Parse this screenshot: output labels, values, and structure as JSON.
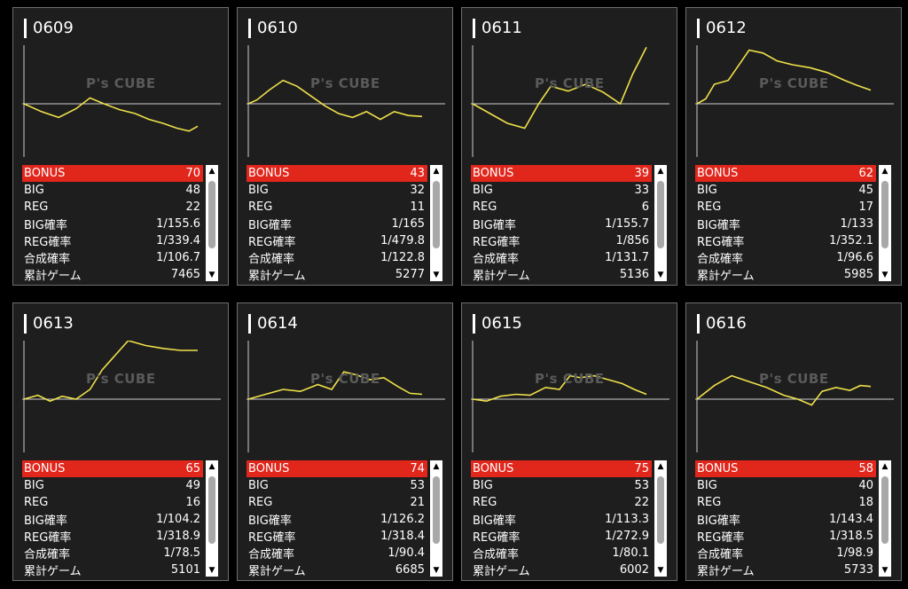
{
  "stat_labels": {
    "bonus": "BONUS",
    "big": "BIG",
    "reg": "REG",
    "big_rate": "BIG確率",
    "reg_rate": "REG確率",
    "total_rate": "合成確率",
    "games": "累計ゲーム"
  },
  "watermark": "P's CUBE",
  "colors": {
    "accent": "#e1261c",
    "line": "#f0e14a",
    "card_bg": "#1e1e1e"
  },
  "cards": [
    {
      "title": "0609",
      "bonus": "70",
      "big": "48",
      "reg": "22",
      "big_rate": "1/155.6",
      "reg_rate": "1/339.4",
      "total_rate": "1/106.7",
      "games": "7465",
      "graph": [
        [
          0,
          0
        ],
        [
          0.1,
          -0.08
        ],
        [
          0.2,
          -0.14
        ],
        [
          0.3,
          -0.05
        ],
        [
          0.38,
          0.06
        ],
        [
          0.46,
          0.0
        ],
        [
          0.55,
          -0.06
        ],
        [
          0.64,
          -0.1
        ],
        [
          0.72,
          -0.16
        ],
        [
          0.8,
          -0.2
        ],
        [
          0.88,
          -0.25
        ],
        [
          0.95,
          -0.28
        ],
        [
          1,
          -0.23
        ]
      ]
    },
    {
      "title": "0610",
      "bonus": "43",
      "big": "32",
      "reg": "11",
      "big_rate": "1/165",
      "reg_rate": "1/479.8",
      "total_rate": "1/122.8",
      "games": "5277",
      "graph": [
        [
          0,
          0
        ],
        [
          0.05,
          0.04
        ],
        [
          0.12,
          0.14
        ],
        [
          0.2,
          0.24
        ],
        [
          0.28,
          0.18
        ],
        [
          0.36,
          0.08
        ],
        [
          0.44,
          -0.02
        ],
        [
          0.52,
          -0.1
        ],
        [
          0.6,
          -0.14
        ],
        [
          0.68,
          -0.08
        ],
        [
          0.76,
          -0.16
        ],
        [
          0.84,
          -0.08
        ],
        [
          0.92,
          -0.12
        ],
        [
          1,
          -0.13
        ]
      ]
    },
    {
      "title": "0611",
      "bonus": "39",
      "big": "33",
      "reg": "6",
      "big_rate": "1/155.7",
      "reg_rate": "1/856",
      "total_rate": "1/131.7",
      "games": "5136",
      "graph": [
        [
          0,
          0
        ],
        [
          0.1,
          -0.1
        ],
        [
          0.2,
          -0.2
        ],
        [
          0.3,
          -0.25
        ],
        [
          0.38,
          0.0
        ],
        [
          0.45,
          0.18
        ],
        [
          0.55,
          0.13
        ],
        [
          0.65,
          0.2
        ],
        [
          0.75,
          0.12
        ],
        [
          0.85,
          0.0
        ],
        [
          0.92,
          0.3
        ],
        [
          1,
          0.58
        ]
      ]
    },
    {
      "title": "0612",
      "bonus": "62",
      "big": "45",
      "reg": "17",
      "big_rate": "1/133",
      "reg_rate": "1/352.1",
      "total_rate": "1/96.6",
      "games": "5985",
      "graph": [
        [
          0,
          0
        ],
        [
          0.05,
          0.05
        ],
        [
          0.1,
          0.2
        ],
        [
          0.18,
          0.24
        ],
        [
          0.25,
          0.42
        ],
        [
          0.3,
          0.55
        ],
        [
          0.38,
          0.52
        ],
        [
          0.46,
          0.44
        ],
        [
          0.55,
          0.4
        ],
        [
          0.65,
          0.37
        ],
        [
          0.75,
          0.32
        ],
        [
          0.85,
          0.24
        ],
        [
          0.92,
          0.19
        ],
        [
          1,
          0.14
        ]
      ]
    },
    {
      "title": "0613",
      "bonus": "65",
      "big": "49",
      "reg": "16",
      "big_rate": "1/104.2",
      "reg_rate": "1/318.9",
      "total_rate": "1/78.5",
      "games": "5101",
      "graph": [
        [
          0,
          0
        ],
        [
          0.08,
          0.04
        ],
        [
          0.15,
          -0.02
        ],
        [
          0.22,
          0.03
        ],
        [
          0.3,
          0.0
        ],
        [
          0.38,
          0.1
        ],
        [
          0.45,
          0.3
        ],
        [
          0.52,
          0.44
        ],
        [
          0.6,
          0.6
        ],
        [
          0.7,
          0.55
        ],
        [
          0.8,
          0.52
        ],
        [
          0.9,
          0.5
        ],
        [
          1,
          0.5
        ]
      ]
    },
    {
      "title": "0614",
      "bonus": "74",
      "big": "53",
      "reg": "21",
      "big_rate": "1/126.2",
      "reg_rate": "1/318.4",
      "total_rate": "1/90.4",
      "games": "6685",
      "graph": [
        [
          0,
          0
        ],
        [
          0.1,
          0.05
        ],
        [
          0.2,
          0.1
        ],
        [
          0.3,
          0.08
        ],
        [
          0.4,
          0.15
        ],
        [
          0.48,
          0.1
        ],
        [
          0.55,
          0.28
        ],
        [
          0.62,
          0.25
        ],
        [
          0.7,
          0.2
        ],
        [
          0.78,
          0.22
        ],
        [
          0.86,
          0.13
        ],
        [
          0.93,
          0.06
        ],
        [
          1,
          0.05
        ]
      ]
    },
    {
      "title": "0615",
      "bonus": "75",
      "big": "53",
      "reg": "22",
      "big_rate": "1/113.3",
      "reg_rate": "1/272.9",
      "total_rate": "1/80.1",
      "games": "6002",
      "graph": [
        [
          0,
          0
        ],
        [
          0.08,
          -0.02
        ],
        [
          0.16,
          0.03
        ],
        [
          0.25,
          0.05
        ],
        [
          0.33,
          0.04
        ],
        [
          0.42,
          0.12
        ],
        [
          0.5,
          0.1
        ],
        [
          0.56,
          0.24
        ],
        [
          0.62,
          0.22
        ],
        [
          0.7,
          0.24
        ],
        [
          0.78,
          0.2
        ],
        [
          0.86,
          0.16
        ],
        [
          0.93,
          0.1
        ],
        [
          1,
          0.05
        ]
      ]
    },
    {
      "title": "0616",
      "bonus": "58",
      "big": "40",
      "reg": "18",
      "big_rate": "1/143.4",
      "reg_rate": "1/318.5",
      "total_rate": "1/98.9",
      "games": "5733",
      "graph": [
        [
          0,
          0
        ],
        [
          0.1,
          0.14
        ],
        [
          0.2,
          0.24
        ],
        [
          0.3,
          0.18
        ],
        [
          0.4,
          0.12
        ],
        [
          0.5,
          0.04
        ],
        [
          0.58,
          0.0
        ],
        [
          0.66,
          -0.06
        ],
        [
          0.72,
          0.08
        ],
        [
          0.8,
          0.12
        ],
        [
          0.88,
          0.09
        ],
        [
          0.94,
          0.14
        ],
        [
          1,
          0.13
        ]
      ]
    }
  ]
}
